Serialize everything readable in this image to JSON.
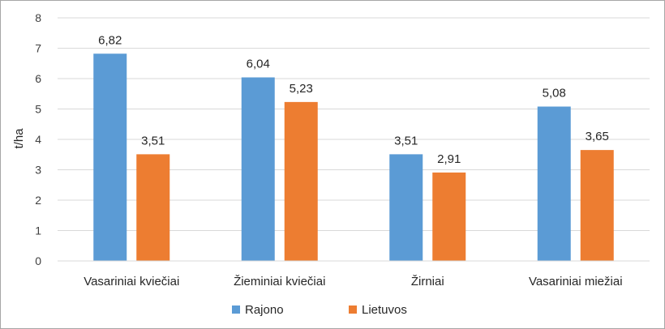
{
  "chart_data": {
    "type": "bar",
    "title": "",
    "xlabel": "",
    "ylabel": "t/ha",
    "ylim": [
      0,
      8
    ],
    "yticks": [
      0,
      1,
      2,
      3,
      4,
      5,
      6,
      7,
      8
    ],
    "grid": true,
    "legend_position": "bottom",
    "categories": [
      "Vasariniai kviečiai",
      "Žieminiai kviečiai",
      "Žirniai",
      "Vasariniai miežiai"
    ],
    "series": [
      {
        "name": "Rajono",
        "color": "#5b9bd5",
        "values": [
          6.82,
          6.04,
          3.51,
          5.08
        ],
        "labels": [
          "6,82",
          "6,04",
          "3,51",
          "5,08"
        ]
      },
      {
        "name": "Lietuvos",
        "color": "#ed7d31",
        "values": [
          3.51,
          5.23,
          2.91,
          3.65
        ],
        "labels": [
          "3,51",
          "5,23",
          "2,91",
          "3,65"
        ]
      }
    ]
  }
}
